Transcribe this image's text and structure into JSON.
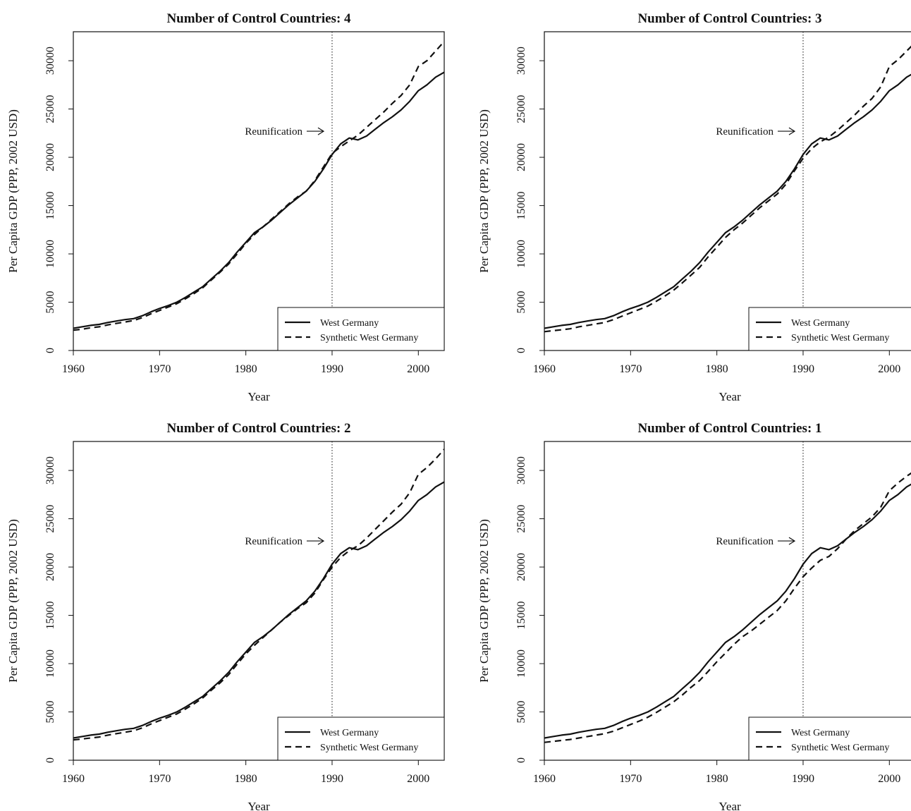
{
  "figure": {
    "common": {
      "xlabel": "Year",
      "ylabel": "Per Capita GDP (PPP, 2002 USD)",
      "x_ticks": [
        1960,
        1970,
        1980,
        1990,
        2000
      ],
      "y_ticks": [
        0,
        5000,
        10000,
        15000,
        20000,
        25000,
        30000
      ],
      "xlim": [
        1960,
        2003
      ],
      "ylim": [
        0,
        33000
      ],
      "reunification_year": 1990,
      "annotation": "Reunification",
      "legend_position": "bottom-right",
      "line_color": "#111111"
    }
  },
  "chart_data": [
    {
      "type": "line",
      "title": "Number of Control Countries: 4",
      "xlabel": "Year",
      "ylabel": "Per Capita GDP (PPP, 2002 USD)",
      "xlim": [
        1960,
        2003
      ],
      "ylim": [
        0,
        33000
      ],
      "x": [
        1960,
        1961,
        1962,
        1963,
        1964,
        1965,
        1966,
        1967,
        1968,
        1969,
        1970,
        1971,
        1972,
        1973,
        1974,
        1975,
        1976,
        1977,
        1978,
        1979,
        1980,
        1981,
        1982,
        1983,
        1984,
        1985,
        1986,
        1987,
        1988,
        1989,
        1990,
        1991,
        1992,
        1993,
        1994,
        1995,
        1996,
        1997,
        1998,
        1999,
        2000,
        2001,
        2002,
        2003
      ],
      "series": [
        {
          "name": "West Germany",
          "style": "solid",
          "values": [
            2300,
            2450,
            2600,
            2700,
            2900,
            3050,
            3200,
            3300,
            3600,
            4000,
            4350,
            4650,
            5000,
            5500,
            6050,
            6600,
            7400,
            8200,
            9100,
            10200,
            11200,
            12200,
            12800,
            13500,
            14300,
            15100,
            15800,
            16500,
            17500,
            18800,
            20300,
            21400,
            22000,
            21800,
            22200,
            22900,
            23600,
            24200,
            24900,
            25800,
            26900,
            27500,
            28300,
            28800
          ]
        },
        {
          "name": "Synthetic West Germany",
          "style": "dashed",
          "values": [
            2100,
            2200,
            2350,
            2450,
            2650,
            2800,
            2950,
            3100,
            3400,
            3800,
            4150,
            4500,
            4850,
            5350,
            5900,
            6500,
            7300,
            8100,
            8950,
            10000,
            11100,
            12000,
            12800,
            13600,
            14400,
            15200,
            15900,
            16500,
            17600,
            19000,
            20400,
            21100,
            21700,
            22300,
            23100,
            23900,
            24700,
            25600,
            26400,
            27500,
            29400,
            30000,
            31000,
            32000
          ]
        }
      ]
    },
    {
      "type": "line",
      "title": "Number of Control Countries: 3",
      "xlabel": "Year",
      "ylabel": "Per Capita GDP (PPP, 2002 USD)",
      "xlim": [
        1960,
        2003
      ],
      "ylim": [
        0,
        33000
      ],
      "x": [
        1960,
        1961,
        1962,
        1963,
        1964,
        1965,
        1966,
        1967,
        1968,
        1969,
        1970,
        1971,
        1972,
        1973,
        1974,
        1975,
        1976,
        1977,
        1978,
        1979,
        1980,
        1981,
        1982,
        1983,
        1984,
        1985,
        1986,
        1987,
        1988,
        1989,
        1990,
        1991,
        1992,
        1993,
        1994,
        1995,
        1996,
        1997,
        1998,
        1999,
        2000,
        2001,
        2002,
        2003
      ],
      "series": [
        {
          "name": "West Germany",
          "style": "solid",
          "values": [
            2300,
            2450,
            2600,
            2700,
            2900,
            3050,
            3200,
            3300,
            3600,
            4000,
            4350,
            4650,
            5000,
            5500,
            6050,
            6600,
            7400,
            8200,
            9100,
            10200,
            11200,
            12200,
            12800,
            13500,
            14300,
            15100,
            15800,
            16500,
            17500,
            18800,
            20300,
            21400,
            22000,
            21800,
            22200,
            22900,
            23600,
            24200,
            24900,
            25800,
            26900,
            27500,
            28300,
            28800
          ]
        },
        {
          "name": "Synthetic West Germany",
          "style": "dashed",
          "values": [
            1950,
            2050,
            2150,
            2250,
            2450,
            2600,
            2750,
            2900,
            3200,
            3550,
            3900,
            4250,
            4600,
            5100,
            5650,
            6250,
            7000,
            7800,
            8600,
            9700,
            10700,
            11700,
            12500,
            13200,
            14000,
            14800,
            15500,
            16200,
            17200,
            18600,
            19900,
            20900,
            21600,
            22100,
            22800,
            23600,
            24400,
            25300,
            26100,
            27300,
            29400,
            30100,
            31000,
            31900
          ]
        }
      ]
    },
    {
      "type": "line",
      "title": "Number of Control Countries: 2",
      "xlabel": "Year",
      "ylabel": "Per Capita GDP (PPP, 2002 USD)",
      "xlim": [
        1960,
        2003
      ],
      "ylim": [
        0,
        33000
      ],
      "x": [
        1960,
        1961,
        1962,
        1963,
        1964,
        1965,
        1966,
        1967,
        1968,
        1969,
        1970,
        1971,
        1972,
        1973,
        1974,
        1975,
        1976,
        1977,
        1978,
        1979,
        1980,
        1981,
        1982,
        1983,
        1984,
        1985,
        1986,
        1987,
        1988,
        1989,
        1990,
        1991,
        1992,
        1993,
        1994,
        1995,
        1996,
        1997,
        1998,
        1999,
        2000,
        2001,
        2002,
        2003
      ],
      "series": [
        {
          "name": "West Germany",
          "style": "solid",
          "values": [
            2300,
            2450,
            2600,
            2700,
            2900,
            3050,
            3200,
            3300,
            3600,
            4000,
            4350,
            4650,
            5000,
            5500,
            6050,
            6600,
            7400,
            8200,
            9100,
            10200,
            11200,
            12200,
            12800,
            13500,
            14300,
            15100,
            15800,
            16500,
            17500,
            18800,
            20300,
            21400,
            22000,
            21800,
            22200,
            22900,
            23600,
            24200,
            24900,
            25800,
            26900,
            27500,
            28300,
            28800
          ]
        },
        {
          "name": "Synthetic West Germany",
          "style": "dashed",
          "values": [
            2100,
            2200,
            2300,
            2400,
            2600,
            2750,
            2900,
            3050,
            3350,
            3750,
            4100,
            4450,
            4800,
            5300,
            5850,
            6450,
            7250,
            8000,
            8850,
            9950,
            11000,
            11900,
            12700,
            13500,
            14300,
            15000,
            15700,
            16300,
            17300,
            18700,
            20000,
            21000,
            21700,
            22200,
            23000,
            23900,
            24800,
            25700,
            26500,
            27700,
            29600,
            30300,
            31200,
            32200
          ]
        }
      ]
    },
    {
      "type": "line",
      "title": "Number of Control Countries: 1",
      "xlabel": "Year",
      "ylabel": "Per Capita GDP (PPP, 2002 USD)",
      "xlim": [
        1960,
        2003
      ],
      "ylim": [
        0,
        33000
      ],
      "x": [
        1960,
        1961,
        1962,
        1963,
        1964,
        1965,
        1966,
        1967,
        1968,
        1969,
        1970,
        1971,
        1972,
        1973,
        1974,
        1975,
        1976,
        1977,
        1978,
        1979,
        1980,
        1981,
        1982,
        1983,
        1984,
        1985,
        1986,
        1987,
        1988,
        1989,
        1990,
        1991,
        1992,
        1993,
        1994,
        1995,
        1996,
        1997,
        1998,
        1999,
        2000,
        2001,
        2002,
        2003
      ],
      "series": [
        {
          "name": "West Germany",
          "style": "solid",
          "values": [
            2300,
            2450,
            2600,
            2700,
            2900,
            3050,
            3200,
            3300,
            3600,
            4000,
            4350,
            4650,
            5000,
            5500,
            6050,
            6600,
            7400,
            8200,
            9100,
            10200,
            11200,
            12200,
            12800,
            13500,
            14300,
            15100,
            15800,
            16500,
            17500,
            18800,
            20300,
            21400,
            22000,
            21800,
            22200,
            22900,
            23600,
            24200,
            24900,
            25800,
            26900,
            27500,
            28300,
            28800
          ]
        },
        {
          "name": "Synthetic West Germany",
          "style": "dashed",
          "values": [
            1850,
            1950,
            2050,
            2150,
            2300,
            2450,
            2600,
            2750,
            3000,
            3350,
            3700,
            4050,
            4450,
            4950,
            5500,
            6050,
            6750,
            7550,
            8250,
            9200,
            10200,
            11100,
            12000,
            12800,
            13400,
            14100,
            14800,
            15500,
            16500,
            17800,
            19000,
            19900,
            20700,
            21100,
            21900,
            22900,
            23800,
            24500,
            25200,
            26200,
            27900,
            28700,
            29400,
            30000
          ]
        }
      ]
    }
  ]
}
